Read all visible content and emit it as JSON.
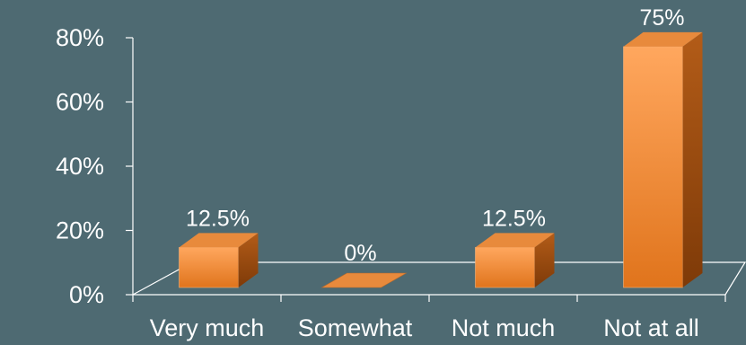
{
  "chart_data": {
    "type": "bar",
    "categories": [
      "Very much",
      "Somewhat",
      "Not much",
      "Not at all"
    ],
    "values": [
      12.5,
      0,
      12.5,
      75
    ],
    "data_labels": [
      "12.5%",
      "0%",
      "12.5%",
      "75%"
    ],
    "yticks": [
      "0%",
      "20%",
      "40%",
      "60%",
      "80%"
    ],
    "ylim": [
      0,
      80
    ],
    "grid": false,
    "legend": "none",
    "three_d": true
  },
  "colors": {
    "background": "#4e6a72",
    "axis": "#ffffff",
    "bar_front_top": "#ffa75e",
    "bar_front_bottom": "#e0741c",
    "bar_top": "#e88a3c",
    "bar_side": "#9a4a10",
    "text": "#ffffff"
  }
}
